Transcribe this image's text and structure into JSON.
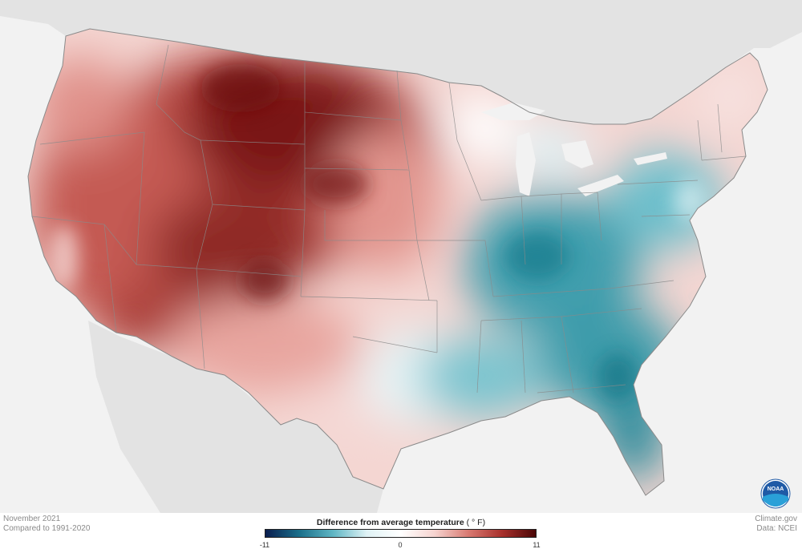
{
  "footer": {
    "date": "November 2021",
    "baseline": "Compared to 1991-2020",
    "source_site": "Climate.gov",
    "data_credit": "Data: NCEI"
  },
  "legend": {
    "title": "Difference from average temperature",
    "unit": "( ° F)",
    "min_label": "-11",
    "mid_label": "0",
    "max_label": "11",
    "min_value": -11,
    "max_value": 11,
    "colors": [
      "#0a1e4f",
      "#1a6f8a",
      "#5fb6c4",
      "#dff2f5",
      "#ffffff",
      "#f6d4d0",
      "#d97a72",
      "#a8302c",
      "#4a0606"
    ]
  },
  "logo": {
    "text": "NOAA",
    "icon": "noaa-logo"
  },
  "map": {
    "land_color": "#e6e6e6",
    "ocean_color": "#f2f2f2",
    "border_color": "#8a8a8a"
  }
}
